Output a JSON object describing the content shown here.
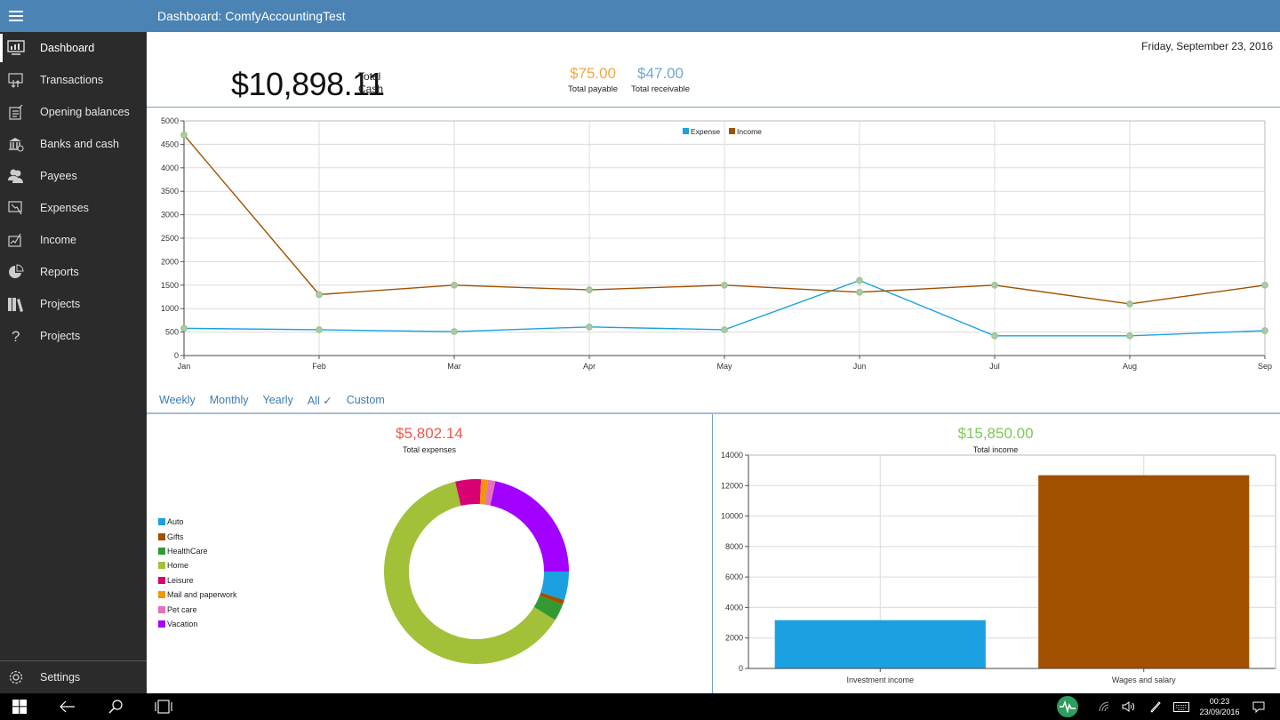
{
  "app": {
    "title": "Dashboard: ComfyAccountingTest"
  },
  "sidebar": {
    "items": [
      {
        "label": "Dashboard",
        "icon": "dashboard-icon",
        "active": true
      },
      {
        "label": "Transactions",
        "icon": "transactions-icon"
      },
      {
        "label": "Opening balances",
        "icon": "opening-balances-icon"
      },
      {
        "label": "Banks and cash",
        "icon": "bank-icon"
      },
      {
        "label": "Payees",
        "icon": "payees-icon"
      },
      {
        "label": "Expenses",
        "icon": "expenses-icon"
      },
      {
        "label": "Income",
        "icon": "income-icon"
      },
      {
        "label": "Reports",
        "icon": "pie-chart-icon"
      },
      {
        "label": "Projects",
        "icon": "books-icon"
      },
      {
        "label": "Projects",
        "icon": "help-icon"
      }
    ],
    "settings_label": "Settings"
  },
  "header": {
    "date": "Friday, September 23, 2016",
    "total_cash": "$10,898.11",
    "total_cash_label_1": "Total",
    "total_cash_label_2": "Cash",
    "total_payable": "$75.00",
    "total_payable_label": "Total payable",
    "total_receivable": "$47.00",
    "total_receivable_label": "Total receivable"
  },
  "colors": {
    "accent": "#4a83b4",
    "expense": "#1ba1e2",
    "income": "#a05000",
    "payable": "#f0a848",
    "receivable": "#6fa6d2",
    "expenses_total": "#f0574a",
    "income_total": "#7ec855"
  },
  "period_tabs": [
    {
      "label": "Weekly"
    },
    {
      "label": "Monthly"
    },
    {
      "label": "Yearly"
    },
    {
      "label": "All ✓",
      "selected": true
    },
    {
      "label": "Custom"
    }
  ],
  "expenses_panel": {
    "total": "$5,802.14",
    "label": "Total expenses"
  },
  "income_panel": {
    "total": "$15,850.00",
    "label": "Total income"
  },
  "chart_data": [
    {
      "type": "line",
      "title": "",
      "categories": [
        "Jan",
        "Feb",
        "Mar",
        "Apr",
        "May",
        "Jun",
        "Jul",
        "Aug",
        "Sep"
      ],
      "series": [
        {
          "name": "Expense",
          "color": "#1ba1e2",
          "values": [
            580,
            550,
            510,
            610,
            550,
            1600,
            420,
            420,
            530
          ]
        },
        {
          "name": "Income",
          "color": "#a05000",
          "values": [
            4700,
            1300,
            1500,
            1400,
            1500,
            1350,
            1500,
            1100,
            1500
          ]
        }
      ],
      "ylim": [
        0,
        5000
      ],
      "yticks": [
        0,
        500,
        1000,
        1500,
        2000,
        2500,
        3000,
        3500,
        4000,
        4500,
        5000
      ],
      "grid": true,
      "legend": "top-center"
    },
    {
      "type": "pie",
      "title": "Total expenses",
      "donut": true,
      "slices": [
        {
          "name": "Auto",
          "color": "#1ba1e2",
          "value": 5.0
        },
        {
          "name": "Gifts",
          "color": "#a05000",
          "value": 0.8
        },
        {
          "name": "HealthCare",
          "color": "#339933",
          "value": 3.0
        },
        {
          "name": "Home",
          "color": "#a2c139",
          "value": 62.5
        },
        {
          "name": "Leisure",
          "color": "#d80073",
          "value": 4.5
        },
        {
          "name": "Mail and paperwork",
          "color": "#f09609",
          "value": 1.2
        },
        {
          "name": "Pet care",
          "color": "#e671b8",
          "value": 1.3
        },
        {
          "name": "Vacation",
          "color": "#a200ff",
          "value": 21.7
        }
      ],
      "legend": "left"
    },
    {
      "type": "bar",
      "title": "Total income",
      "categories": [
        "Investment income",
        "Wages and salary"
      ],
      "values": [
        3170,
        12680
      ],
      "colors": [
        "#1ba1e2",
        "#a05000"
      ],
      "ylim": [
        0,
        14000
      ],
      "yticks": [
        0,
        2000,
        4000,
        6000,
        8000,
        10000,
        12000,
        14000
      ],
      "grid": true
    }
  ],
  "taskbar": {
    "time": "00:23",
    "date": "23/09/2016"
  }
}
